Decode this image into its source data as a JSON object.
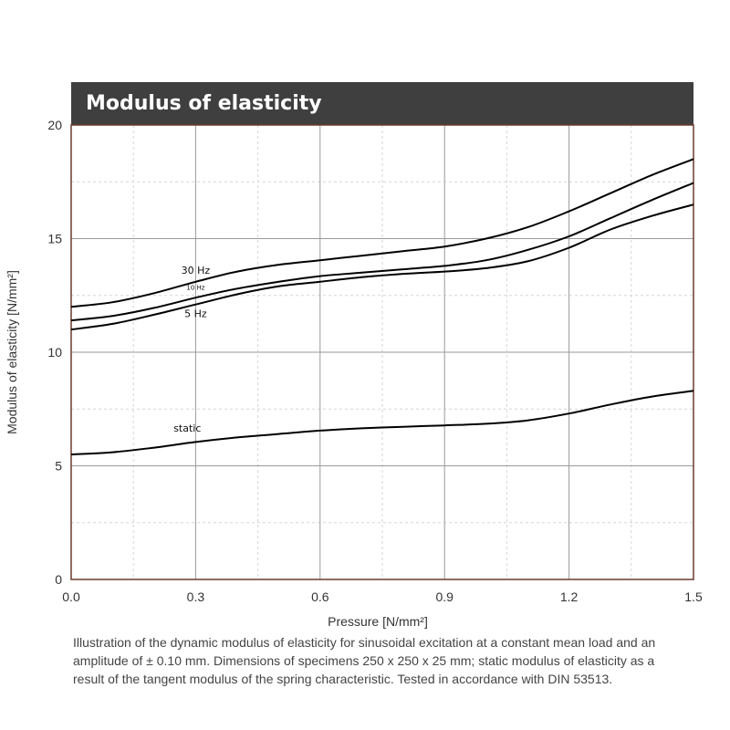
{
  "chart_data": {
    "type": "line",
    "title": "Modulus of elasticity",
    "xlabel": "Pressure [N/mm²]",
    "ylabel": "Modulus of elasticity   [N/mm²]",
    "xlim": [
      0,
      1.5
    ],
    "ylim": [
      0,
      20
    ],
    "x_ticks": [
      "0.0",
      "0.3",
      "0.6",
      "0.9",
      "1.2",
      "1.5"
    ],
    "y_ticks": [
      "0",
      "5",
      "10",
      "15",
      "20"
    ],
    "grid": true,
    "series": [
      {
        "name": "30 Hz",
        "x": [
          0,
          0.1,
          0.2,
          0.3,
          0.4,
          0.5,
          0.6,
          0.7,
          0.8,
          0.9,
          1.0,
          1.1,
          1.2,
          1.3,
          1.4,
          1.5
        ],
        "y": [
          12.0,
          12.2,
          12.6,
          13.1,
          13.55,
          13.85,
          14.05,
          14.25,
          14.45,
          14.65,
          15.0,
          15.5,
          16.2,
          17.0,
          17.8,
          18.5
        ]
      },
      {
        "name": "10 Hz",
        "x": [
          0,
          0.1,
          0.2,
          0.3,
          0.4,
          0.5,
          0.6,
          0.7,
          0.8,
          0.9,
          1.0,
          1.1,
          1.2,
          1.3,
          1.4,
          1.5
        ],
        "y": [
          11.4,
          11.6,
          11.95,
          12.4,
          12.8,
          13.1,
          13.35,
          13.5,
          13.65,
          13.8,
          14.05,
          14.5,
          15.1,
          15.9,
          16.7,
          17.45
        ]
      },
      {
        "name": "5 Hz",
        "x": [
          0,
          0.1,
          0.2,
          0.3,
          0.4,
          0.5,
          0.6,
          0.7,
          0.8,
          0.9,
          1.0,
          1.1,
          1.2,
          1.3,
          1.4,
          1.5
        ],
        "y": [
          11.0,
          11.25,
          11.65,
          12.1,
          12.55,
          12.9,
          13.1,
          13.3,
          13.45,
          13.55,
          13.7,
          14.0,
          14.6,
          15.4,
          16.0,
          16.5
        ]
      },
      {
        "name": "static",
        "x": [
          0,
          0.1,
          0.2,
          0.3,
          0.4,
          0.5,
          0.6,
          0.7,
          0.8,
          0.9,
          1.0,
          1.1,
          1.2,
          1.3,
          1.4,
          1.5
        ],
        "y": [
          5.5,
          5.6,
          5.8,
          6.05,
          6.25,
          6.4,
          6.55,
          6.65,
          6.72,
          6.78,
          6.85,
          7.0,
          7.3,
          7.7,
          8.05,
          8.3
        ]
      }
    ],
    "series_labels": [
      {
        "text": "30 Hz",
        "x": 0.3,
        "y": 13.45
      },
      {
        "text": "10 Hz",
        "x": 0.3,
        "y": 12.75
      },
      {
        "text": "5 Hz",
        "x": 0.3,
        "y": 11.55
      },
      {
        "text": "static",
        "x": 0.28,
        "y": 6.5
      }
    ]
  },
  "caption": "Illustration of the dynamic modulus of elasticity for sinusoidal excitation at a constant mean load and an amplitude of ± 0.10 mm. Dimensions of specimens 250 x 250 x 25 mm; static modulus of elasticity as a result of the tangent modulus of the spring characteristic. Tested in accordance with DIN 53513."
}
